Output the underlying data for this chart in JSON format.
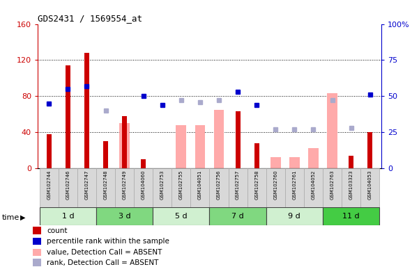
{
  "title": "GDS2431 / 1569554_at",
  "samples": [
    "GSM102744",
    "GSM102746",
    "GSM102747",
    "GSM102748",
    "GSM102749",
    "GSM104060",
    "GSM102753",
    "GSM102755",
    "GSM104051",
    "GSM102756",
    "GSM102757",
    "GSM102758",
    "GSM102760",
    "GSM102761",
    "GSM104052",
    "GSM102763",
    "GSM103323",
    "GSM104053"
  ],
  "count": [
    38,
    114,
    128,
    30,
    58,
    10,
    null,
    null,
    null,
    null,
    63,
    28,
    null,
    null,
    null,
    null,
    14,
    40
  ],
  "percentile_rank": [
    45,
    55,
    57,
    null,
    null,
    50,
    44,
    null,
    null,
    null,
    53,
    44,
    null,
    null,
    null,
    null,
    null,
    51
  ],
  "value_absent": [
    null,
    null,
    null,
    null,
    50,
    null,
    null,
    48,
    48,
    65,
    null,
    null,
    12,
    12,
    22,
    83,
    null,
    null
  ],
  "rank_absent": [
    null,
    null,
    null,
    40,
    null,
    null,
    null,
    47,
    46,
    47,
    null,
    null,
    27,
    27,
    27,
    47,
    28,
    null
  ],
  "time_groups": [
    {
      "label": "1 d",
      "start": 0,
      "end": 3,
      "color": "#d0f0d0"
    },
    {
      "label": "3 d",
      "start": 3,
      "end": 6,
      "color": "#80d880"
    },
    {
      "label": "5 d",
      "start": 6,
      "end": 9,
      "color": "#d0f0d0"
    },
    {
      "label": "7 d",
      "start": 9,
      "end": 12,
      "color": "#80d880"
    },
    {
      "label": "9 d",
      "start": 12,
      "end": 15,
      "color": "#d0f0d0"
    },
    {
      "label": "11 d",
      "start": 15,
      "end": 18,
      "color": "#44cc44"
    }
  ],
  "ylim_left": [
    0,
    160
  ],
  "ylim_right": [
    0,
    100
  ],
  "yticks_left": [
    0,
    40,
    80,
    120,
    160
  ],
  "yticks_left_labels": [
    "0",
    "40",
    "80",
    "120",
    "160"
  ],
  "yticks_right": [
    0,
    25,
    50,
    75,
    100
  ],
  "yticks_right_labels": [
    "0",
    "25",
    "50",
    "75",
    "100%"
  ],
  "color_count": "#cc0000",
  "color_percentile": "#0000cc",
  "color_value_absent": "#ffaaaa",
  "color_rank_absent": "#aaaacc",
  "legend_items": [
    {
      "label": "count",
      "color": "#cc0000"
    },
    {
      "label": "percentile rank within the sample",
      "color": "#0000cc"
    },
    {
      "label": "value, Detection Call = ABSENT",
      "color": "#ffaaaa"
    },
    {
      "label": "rank, Detection Call = ABSENT",
      "color": "#aaaacc"
    }
  ],
  "background_color": "#ffffff"
}
